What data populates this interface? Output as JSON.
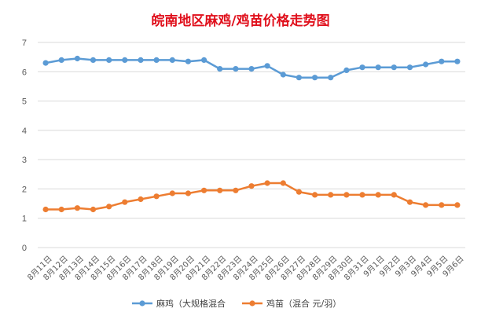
{
  "chart_data": {
    "type": "line",
    "title": "皖南地区麻鸡/鸡苗价格走势图",
    "xlabel": "",
    "ylabel": "",
    "ylim": [
      0,
      7
    ],
    "yticks": [
      0,
      1,
      2,
      3,
      4,
      5,
      6,
      7
    ],
    "grid": true,
    "legend_position": "bottom",
    "categories": [
      "8月11日",
      "8月12日",
      "8月13日",
      "8月14日",
      "8月15日",
      "8月16日",
      "8月17日",
      "8月18日",
      "8月19日",
      "8月20日",
      "8月21日",
      "8月22日",
      "8月23日",
      "8月24日",
      "8月25日",
      "8月26日",
      "8月27日",
      "8月28日",
      "8月29日",
      "8月30日",
      "8月31日",
      "9月1日",
      "9月2日",
      "9月3日",
      "9月4日",
      "9月5日",
      "9月6日"
    ],
    "series": [
      {
        "name": "麻鸡（大规格混合",
        "color": "#5b9bd5",
        "values": [
          6.3,
          6.4,
          6.45,
          6.4,
          6.4,
          6.4,
          6.4,
          6.4,
          6.4,
          6.35,
          6.4,
          6.1,
          6.1,
          6.1,
          6.2,
          5.9,
          5.8,
          5.8,
          5.8,
          6.05,
          6.15,
          6.15,
          6.15,
          6.15,
          6.25,
          6.35,
          6.35
        ]
      },
      {
        "name": "鸡苗（混合 元/羽）",
        "color": "#ed7d31",
        "values": [
          1.3,
          1.3,
          1.35,
          1.3,
          1.4,
          1.55,
          1.65,
          1.75,
          1.85,
          1.85,
          1.95,
          1.95,
          1.95,
          2.1,
          2.2,
          2.2,
          1.9,
          1.8,
          1.8,
          1.8,
          1.8,
          1.8,
          1.8,
          1.55,
          1.45,
          1.45,
          1.45
        ]
      }
    ]
  }
}
